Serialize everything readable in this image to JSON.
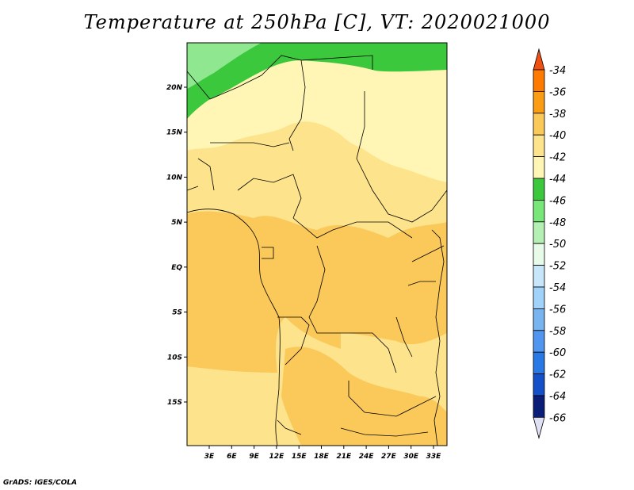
{
  "title": "Temperature at 250hPa [C], VT: 2020021000",
  "footer": "GrADS: IGES/COLA",
  "map": {
    "lat_labels": [
      "20N",
      "15N",
      "10N",
      "5N",
      "EQ",
      "5S",
      "10S",
      "15S"
    ],
    "lon_labels": [
      "3E",
      "6E",
      "9E",
      "12E",
      "15E",
      "18E",
      "21E",
      "24E",
      "27E",
      "30E",
      "33E"
    ],
    "fill_colors": {
      "lt_minus_48": "#8fe88f",
      "minus_46_44": "#3cc83c",
      "minus_44_42": "#fff5b4",
      "minus_42_40": "#fde48c",
      "minus_40_38": "#fbc85a"
    }
  },
  "colorbar": {
    "levels": [
      "-34",
      "-36",
      "-38",
      "-40",
      "-42",
      "-44",
      "-46",
      "-48",
      "-50",
      "-52",
      "-54",
      "-56",
      "-58",
      "-60",
      "-62",
      "-64",
      "-66"
    ],
    "colors": [
      "#f05014",
      "#ff7a00",
      "#fa9d14",
      "#fbc85a",
      "#fde48c",
      "#fff5b4",
      "#3cc83c",
      "#78e678",
      "#b4f0b4",
      "#e8fae8",
      "#c8e6fa",
      "#a0d2fa",
      "#78b4f0",
      "#5096f0",
      "#2878e6",
      "#1450c8",
      "#0a1e78",
      "#e0e0f4"
    ]
  }
}
